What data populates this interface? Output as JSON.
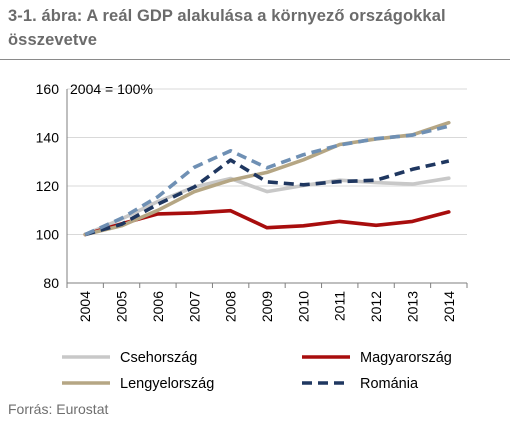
{
  "figure": {
    "title": "3-1. ábra: A reál GDP alakulása a környező országokkal összevetve",
    "source": "Forrás: Eurostat"
  },
  "chart_data": {
    "type": "line",
    "annotation": "2004 = 100%",
    "x": [
      "2004",
      "2005",
      "2006",
      "2007",
      "2008",
      "2009",
      "2010",
      "2011",
      "2012",
      "2013",
      "2014"
    ],
    "ylim": [
      80,
      160
    ],
    "yticks": [
      80,
      100,
      120,
      140,
      160
    ],
    "grid": "horizontal",
    "legend_position": "bottom",
    "series": [
      {
        "name": "Csehország",
        "color": "#c8c8c8",
        "dash": "solid",
        "values": [
          100,
          106.4,
          113.6,
          119.6,
          123.1,
          117.7,
          120.2,
          122.4,
          121.4,
          120.8,
          123.2
        ]
      },
      {
        "name": "Magyarország",
        "color": "#a80d0d",
        "dash": "solid",
        "values": [
          100,
          104.4,
          108.5,
          108.9,
          109.8,
          102.8,
          103.6,
          105.4,
          103.8,
          105.4,
          109.3
        ]
      },
      {
        "name": "Lengyelország",
        "color": "#b5a684",
        "dash": "solid",
        "values": [
          100,
          103.6,
          110.0,
          117.7,
          122.4,
          125.6,
          130.8,
          137.1,
          139.4,
          141.1,
          146.1
        ]
      },
      {
        "name": "Románia",
        "color": "#1f3760",
        "dash": "dashed",
        "values": [
          100,
          104.2,
          112.5,
          119.6,
          130.7,
          121.7,
          120.5,
          121.8,
          122.4,
          126.9,
          130.3
        ]
      },
      {
        "name": "",
        "color": "#6f90b4",
        "dash": "dashed",
        "values": [
          100,
          106.7,
          115.6,
          127.7,
          134.5,
          127.5,
          132.9,
          136.9,
          139.5,
          141.0,
          144.7
        ]
      }
    ]
  }
}
